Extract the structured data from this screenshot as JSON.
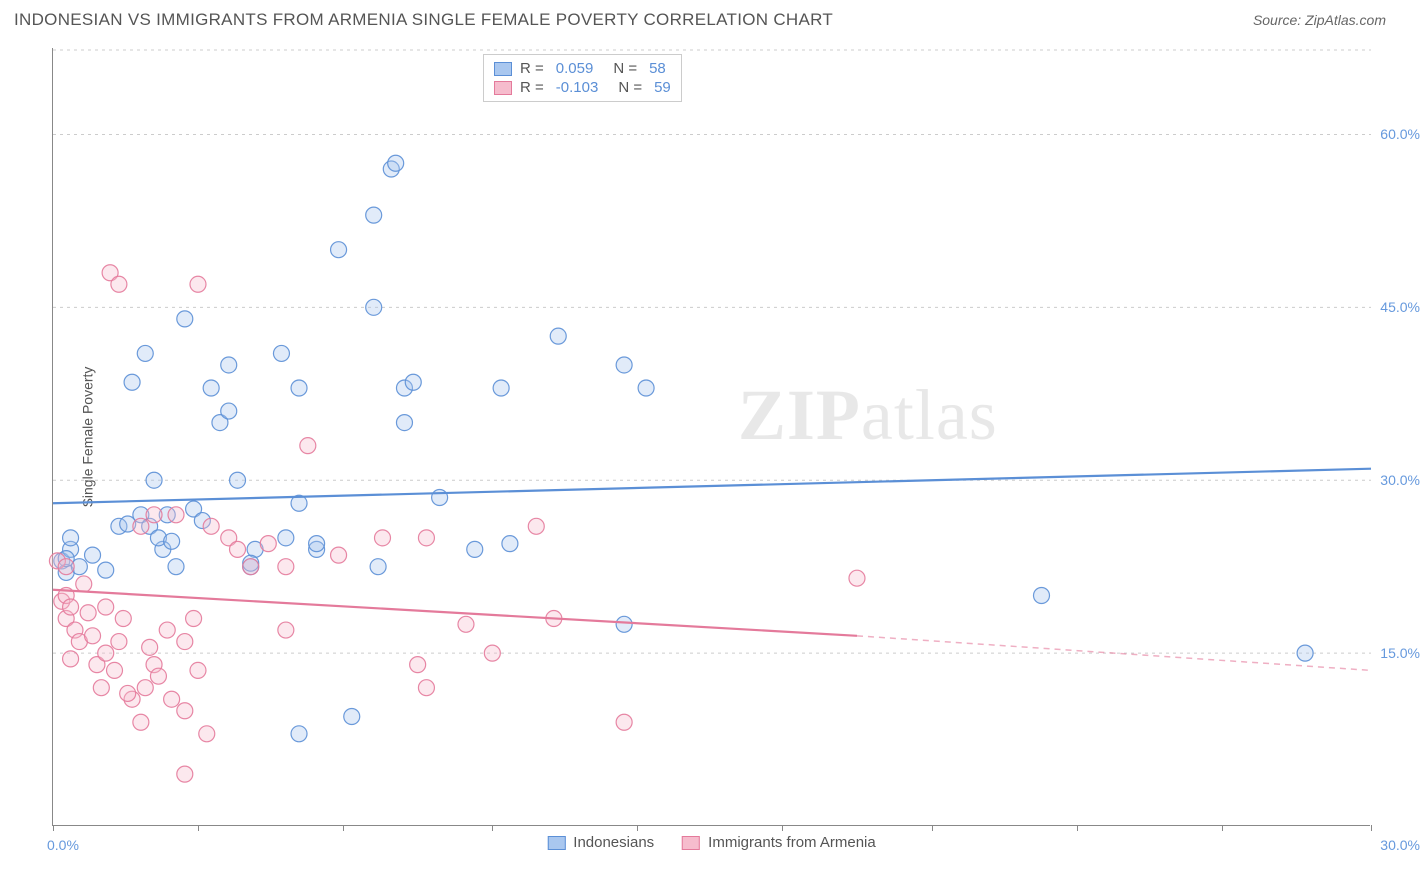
{
  "title": "INDONESIAN VS IMMIGRANTS FROM ARMENIA SINGLE FEMALE POVERTY CORRELATION CHART",
  "source": "Source: ZipAtlas.com",
  "watermark": {
    "zip": "ZIP",
    "atlas": "atlas"
  },
  "chart": {
    "type": "scatter",
    "background_color": "#ffffff",
    "grid_color": "#cccccc",
    "axis_color": "#888888",
    "xlim": [
      0,
      30
    ],
    "ylim": [
      0,
      67.5
    ],
    "yticks": [
      15,
      30,
      45,
      60
    ],
    "ytick_labels": [
      "15.0%",
      "30.0%",
      "45.0%",
      "60.0%"
    ],
    "xticks": [
      0,
      3.3,
      6.6,
      10,
      13.3,
      16.6,
      20,
      23.3,
      26.6,
      30
    ],
    "xaxis_endpoints": {
      "min_label": "0.0%",
      "max_label": "30.0%"
    },
    "yaxis_title": "Single Female Poverty",
    "yaxis_label_color": "#6699dd",
    "label_fontsize": 14,
    "marker_radius": 8,
    "marker_stroke_width": 1.2,
    "marker_fill_opacity": 0.35,
    "marker_stroke_opacity": 0.9,
    "line_width": 2.2
  },
  "legend_top": {
    "series": [
      {
        "color_fill": "#a9c7ef",
        "color_stroke": "#5b8fd6",
        "r_label": "R =",
        "r_value": "0.059",
        "n_label": "N =",
        "n_value": "58"
      },
      {
        "color_fill": "#f6bccd",
        "color_stroke": "#e47a9b",
        "r_label": "R =",
        "r_value": "-0.103",
        "n_label": "N =",
        "n_value": "59"
      }
    ]
  },
  "legend_bottom": {
    "items": [
      {
        "color_fill": "#a9c7ef",
        "color_stroke": "#5b8fd6",
        "label": "Indonesians"
      },
      {
        "color_fill": "#f6bccd",
        "color_stroke": "#e47a9b",
        "label": "Immigrants from Armenia"
      }
    ]
  },
  "series": [
    {
      "name": "Indonesians",
      "color_fill": "#a9c7ef",
      "color_stroke": "#5b8fd6",
      "regression": {
        "x1": 0,
        "y1": 28,
        "x2": 30,
        "y2": 31,
        "solid": true
      },
      "points": [
        [
          0.2,
          23
        ],
        [
          0.3,
          22
        ],
        [
          0.4,
          24
        ],
        [
          0.4,
          25
        ],
        [
          0.6,
          22.5
        ],
        [
          1.5,
          26
        ],
        [
          1.8,
          38.5
        ],
        [
          2.0,
          27
        ],
        [
          2.2,
          26
        ],
        [
          2.1,
          41
        ],
        [
          2.3,
          30
        ],
        [
          2.5,
          24
        ],
        [
          2.6,
          27
        ],
        [
          2.4,
          25
        ],
        [
          2.8,
          22.5
        ],
        [
          3.0,
          44
        ],
        [
          3.6,
          38
        ],
        [
          3.8,
          35
        ],
        [
          4.0,
          40
        ],
        [
          4.0,
          36
        ],
        [
          4.2,
          30
        ],
        [
          4.6,
          24
        ],
        [
          4.5,
          22.5
        ],
        [
          4.5,
          22.8
        ],
        [
          5.2,
          41
        ],
        [
          5.6,
          28
        ],
        [
          5.3,
          25
        ],
        [
          5.6,
          8
        ],
        [
          5.6,
          38
        ],
        [
          6.0,
          24
        ],
        [
          6.0,
          24.5
        ],
        [
          6.5,
          50
        ],
        [
          6.8,
          9.5
        ],
        [
          7.3,
          45
        ],
        [
          7.4,
          22.5
        ],
        [
          7.7,
          57
        ],
        [
          7.8,
          57.5
        ],
        [
          7.3,
          53
        ],
        [
          8.0,
          35
        ],
        [
          8.0,
          38
        ],
        [
          8.2,
          38.5
        ],
        [
          8.8,
          28.5
        ],
        [
          9.6,
          24
        ],
        [
          10.2,
          38
        ],
        [
          10.4,
          24.5
        ],
        [
          11.5,
          42.5
        ],
        [
          13.0,
          40
        ],
        [
          13.0,
          17.5
        ],
        [
          13.5,
          38
        ],
        [
          22.5,
          20
        ],
        [
          28.5,
          15
        ],
        [
          2.7,
          24.7
        ],
        [
          1.2,
          22.2
        ],
        [
          1.7,
          26.2
        ],
        [
          0.9,
          23.5
        ],
        [
          0.3,
          23.2
        ],
        [
          3.2,
          27.5
        ],
        [
          3.4,
          26.5
        ]
      ]
    },
    {
      "name": "Immigrants from Armenia",
      "color_fill": "#f6bccd",
      "color_stroke": "#e47a9b",
      "regression": {
        "x1": 0,
        "y1": 20.5,
        "x2": 18.3,
        "y2": 16.5,
        "solid": true,
        "dash_extend": {
          "x2": 30,
          "y2": 13.5
        }
      },
      "points": [
        [
          0.1,
          23
        ],
        [
          0.2,
          19.5
        ],
        [
          0.3,
          20
        ],
        [
          0.3,
          18
        ],
        [
          0.4,
          19
        ],
        [
          0.5,
          17
        ],
        [
          0.6,
          16
        ],
        [
          0.8,
          18.5
        ],
        [
          0.7,
          21
        ],
        [
          0.9,
          16.5
        ],
        [
          1.0,
          14
        ],
        [
          1.1,
          12
        ],
        [
          1.2,
          15
        ],
        [
          1.2,
          19
        ],
        [
          1.3,
          48
        ],
        [
          1.5,
          16
        ],
        [
          1.6,
          18
        ],
        [
          1.5,
          47
        ],
        [
          1.8,
          11
        ],
        [
          1.7,
          11.5
        ],
        [
          2.0,
          9
        ],
        [
          2.0,
          26
        ],
        [
          2.1,
          12
        ],
        [
          2.2,
          15.5
        ],
        [
          2.3,
          14
        ],
        [
          2.3,
          27
        ],
        [
          2.4,
          13
        ],
        [
          2.6,
          17
        ],
        [
          2.7,
          11
        ],
        [
          2.8,
          27
        ],
        [
          3.0,
          10
        ],
        [
          3.0,
          16
        ],
        [
          3.2,
          18
        ],
        [
          3.3,
          13.5
        ],
        [
          3.3,
          47
        ],
        [
          3.5,
          8
        ],
        [
          3.6,
          26
        ],
        [
          3.0,
          4.5
        ],
        [
          4.0,
          25
        ],
        [
          4.2,
          24
        ],
        [
          4.5,
          22.5
        ],
        [
          4.9,
          24.5
        ],
        [
          5.3,
          17
        ],
        [
          5.3,
          22.5
        ],
        [
          5.8,
          33
        ],
        [
          6.5,
          23.5
        ],
        [
          7.5,
          25
        ],
        [
          8.3,
          14
        ],
        [
          8.5,
          12
        ],
        [
          8.5,
          25
        ],
        [
          9.4,
          17.5
        ],
        [
          10.0,
          15
        ],
        [
          11.0,
          26
        ],
        [
          11.4,
          18
        ],
        [
          13.0,
          9
        ],
        [
          18.3,
          21.5
        ],
        [
          0.4,
          14.5
        ],
        [
          1.4,
          13.5
        ],
        [
          0.3,
          22.5
        ]
      ]
    }
  ]
}
